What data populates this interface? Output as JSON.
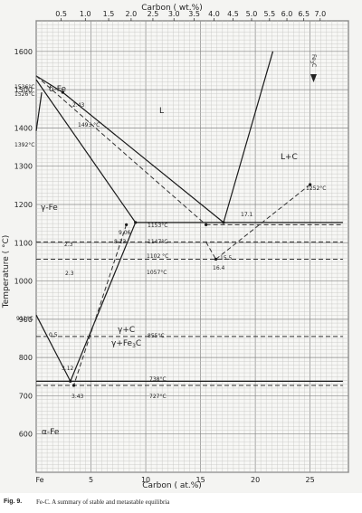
{
  "axes": {
    "top_title": "Carbon ( wt.%)",
    "bottom_title": "Carbon ( at.%)",
    "left_title": "Temperature ( °C)",
    "top_ticks": [
      "0.5",
      "1.0",
      "1.5",
      "2.0",
      "2.5",
      "3.0",
      "3.5",
      "4.0",
      "4.5",
      "5.0",
      "5.5",
      "6.0",
      "6.5",
      "7.0"
    ],
    "top_tick_values": [
      0.5,
      1.0,
      1.5,
      2.0,
      2.5,
      3.0,
      3.5,
      4.0,
      4.5,
      5.0,
      5.5,
      6.0,
      6.5,
      7.0
    ],
    "bottom_ticks": [
      "Fe",
      "5",
      "10",
      "15",
      "20",
      "25"
    ],
    "bottom_tick_values": [
      0,
      5,
      10,
      15,
      20,
      25
    ],
    "left_ticks": [
      "600",
      "700",
      "800",
      "900",
      "1000",
      "1100",
      "1200",
      "1300",
      "1400",
      "1500",
      "1600"
    ],
    "left_tick_values": [
      600,
      700,
      800,
      900,
      1000,
      1100,
      1200,
      1300,
      1400,
      1500,
      1600
    ],
    "x_range_at_pct": [
      0,
      28.5
    ],
    "y_range_celsius": [
      500,
      1680
    ],
    "grid": true
  },
  "phase_labels": {
    "liquid": "L",
    "liquid_graphite": "L+C",
    "delta": "δ-Fe",
    "gamma": "γ-Fe",
    "alpha": "α-Fe",
    "gamma_graphite": "γ+C",
    "gamma_cementite": "γ+Fe",
    "cementite_sub": "3",
    "cementite_suffix": "C",
    "fe3c_marker": "Fe",
    "fe3c_marker_sub": "3",
    "fe3c_marker_suffix": "C"
  },
  "annotations": {
    "t1536": "1536°C",
    "t1526": "1526°C",
    "t1392": "1392°C",
    "t911": "911°C",
    "t1493": "1493 °C",
    "t1153": "1153°C",
    "t1147": "1147°C",
    "t1102": "1102 °C",
    "t1057": "1057°C",
    "t855": "855°C",
    "t738": "738°C",
    "t727": "727°C",
    "t1252": "1252°C",
    "c243_top": "2.43",
    "c906": "9.06",
    "c823": "8.23",
    "c171": "17.1",
    "c155": "15.5",
    "c164": "16.4",
    "c23a": "2.3",
    "c23b": "2.3",
    "c05": "0.5",
    "c312": "3.12",
    "c343": "3.43"
  },
  "chart_data": {
    "type": "line",
    "title": "",
    "xlabel": "Carbon ( at.%)",
    "ylabel": "Temperature ( °C)",
    "xlim": [
      0,
      28.5
    ],
    "ylim": [
      500,
      1680
    ],
    "secondary_xlabel": "Carbon ( wt.%)",
    "stable_lines": [
      {
        "x": [
          0,
          2.43
        ],
        "y": [
          1536,
          1493
        ]
      },
      {
        "x": [
          2.43,
          17.1
        ],
        "y": [
          1493,
          1153
        ]
      },
      {
        "x": [
          17.1,
          21.6
        ],
        "y": [
          1153,
          1600
        ]
      },
      {
        "x": [
          0,
          9.06
        ],
        "y": [
          1526,
          1153
        ]
      },
      {
        "x": [
          9.06,
          28.0
        ],
        "y": [
          1153,
          1153
        ]
      },
      {
        "x": [
          9.06,
          3.12
        ],
        "y": [
          1153,
          738
        ]
      },
      {
        "x": [
          0,
          28.0
        ],
        "y": [
          738,
          738
        ]
      },
      {
        "x": [
          0,
          0.5
        ],
        "y": [
          1392,
          1493
        ]
      },
      {
        "x": [
          0,
          3.12
        ],
        "y": [
          911,
          738
        ]
      }
    ],
    "metastable_lines": [
      {
        "x": [
          0,
          15.5
        ],
        "y": [
          1536,
          1147
        ]
      },
      {
        "x": [
          15.5,
          28.0
        ],
        "y": [
          1147,
          1147
        ]
      },
      {
        "x": [
          8.23,
          3.43
        ],
        "y": [
          1147,
          727
        ]
      },
      {
        "x": [
          0,
          28.0
        ],
        "y": [
          727,
          727
        ]
      },
      {
        "x": [
          0,
          28.0
        ],
        "y": [
          855,
          855
        ]
      },
      {
        "x": [
          0,
          28.0
        ],
        "y": [
          1057,
          1057
        ]
      },
      {
        "x": [
          0,
          28.0
        ],
        "y": [
          1102,
          1102
        ]
      },
      {
        "x": [
          15.5,
          16.4
        ],
        "y": [
          1102,
          1057
        ]
      },
      {
        "x": [
          16.4,
          25.0
        ],
        "y": [
          1057,
          1252
        ]
      }
    ],
    "points": [
      {
        "label": "17.1",
        "x": 17.1,
        "y": 1153
      },
      {
        "label": "9.06",
        "x": 9.06,
        "y": 1153
      },
      {
        "label": "8.23",
        "x": 8.23,
        "y": 1147
      },
      {
        "label": "15.5",
        "x": 15.5,
        "y": 1147
      },
      {
        "label": "16.4",
        "x": 16.4,
        "y": 1057
      },
      {
        "label": "2.43",
        "x": 2.43,
        "y": 1493
      },
      {
        "label": "3.12",
        "x": 3.12,
        "y": 738
      },
      {
        "label": "3.43",
        "x": 3.43,
        "y": 727
      },
      {
        "label": "1252°C",
        "x": 25.0,
        "y": 1252
      }
    ]
  },
  "caption": {
    "fig_label": "Fig. 9.",
    "text": "Fe-C. A summary of stable and metastable equilibria"
  }
}
